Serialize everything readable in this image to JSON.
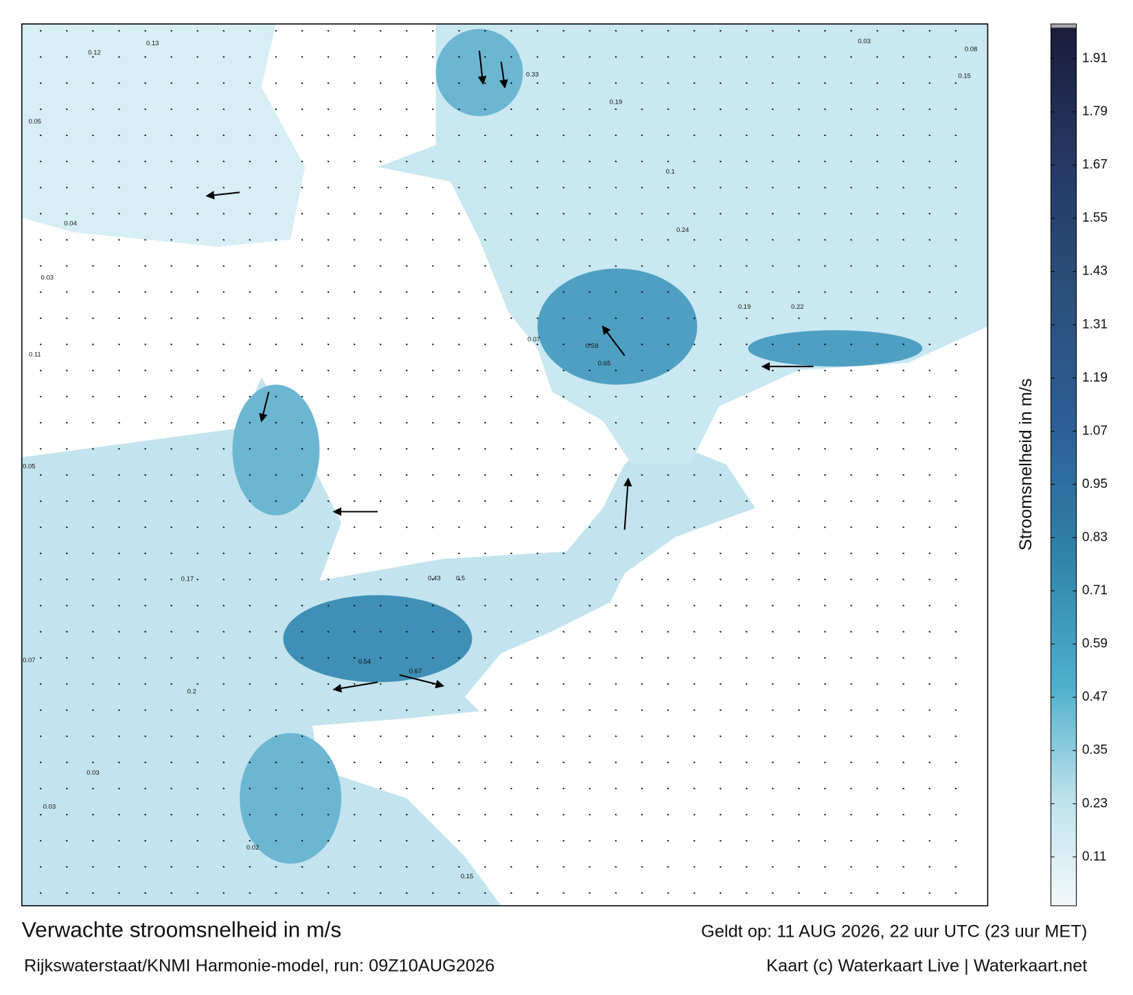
{
  "map": {
    "labels": [
      0.13,
      0.12,
      0.05,
      0.04,
      0.03,
      0.11,
      0.05,
      0.17,
      0.07,
      0.03,
      0.03,
      0.02,
      0.33,
      0.19,
      0.24,
      0.59,
      0.65,
      0.54,
      0.67,
      0.22,
      0.19,
      0.15,
      0.08,
      0.15,
      0.03,
      0.1,
      0.07,
      0.5,
      0.43,
      0.2
    ]
  },
  "colorbar": {
    "label": "Stroomsnelheid in m/s",
    "lim": [
      0,
      1.98
    ],
    "ticks": [
      0.11,
      0.23,
      0.35,
      0.47,
      0.59,
      0.71,
      0.83,
      0.95,
      1.07,
      1.19,
      1.31,
      1.43,
      1.55,
      1.67,
      1.79,
      1.91
    ]
  },
  "footer": {
    "title": "Verwachte stroomsnelheid in m/s",
    "valid": "Geldt op: 11 AUG 2026, 22 uur UTC (23 uur MET)",
    "model": "Rijkswaterstaat/KNMI Harmonie-model, run: 09Z10AUG2026",
    "credit": "Kaart (c) Waterkaart Live | Waterkaart.net"
  }
}
